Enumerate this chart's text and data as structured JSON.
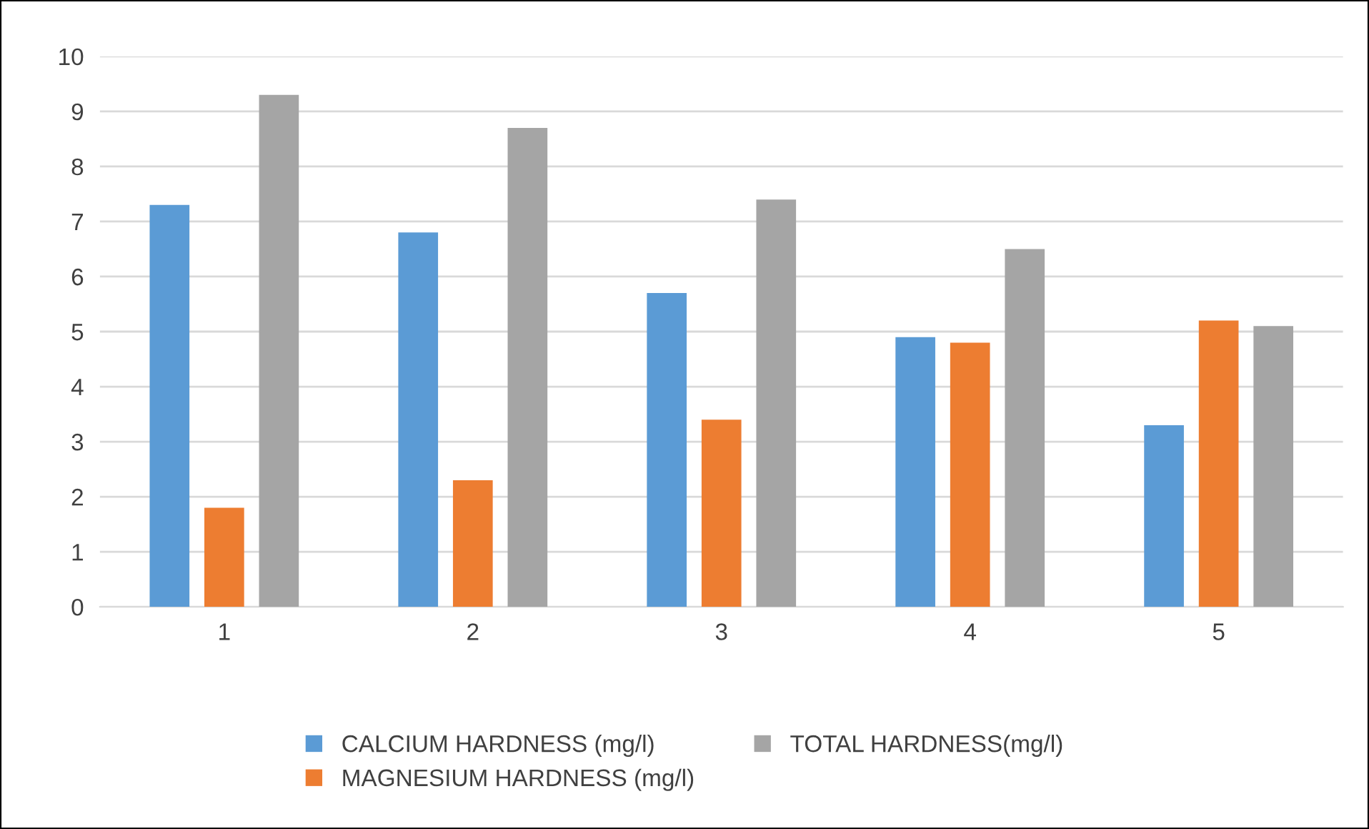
{
  "chart_data": {
    "type": "bar",
    "categories": [
      "1",
      "2",
      "3",
      "4",
      "5"
    ],
    "series": [
      {
        "name": "CALCIUM HARDNESS (mg/l)",
        "color": "#5b9bd5",
        "values": [
          7.3,
          6.8,
          5.7,
          4.9,
          3.3
        ]
      },
      {
        "name": "MAGNESIUM HARDNESS (mg/l)",
        "color": "#ed7d31",
        "values": [
          1.8,
          2.3,
          3.4,
          4.8,
          5.2
        ]
      },
      {
        "name": "TOTAL HARDNESS(mg/l)",
        "color": "#a5a5a5",
        "values": [
          9.3,
          8.7,
          7.4,
          6.5,
          5.1
        ]
      }
    ],
    "ylim": [
      0,
      10
    ],
    "yticks": [
      0,
      1,
      2,
      3,
      4,
      5,
      6,
      7,
      8,
      9,
      10
    ],
    "grid": "y",
    "legend": "bottom"
  }
}
